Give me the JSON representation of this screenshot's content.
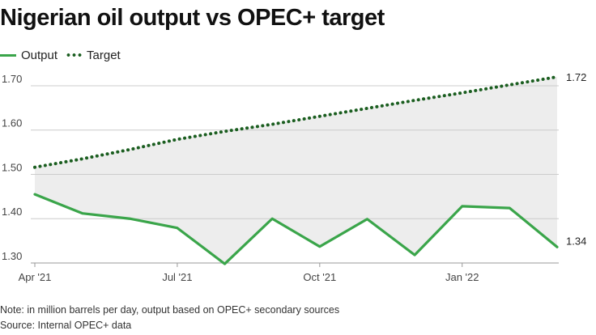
{
  "title": "Nigerian oil output vs OPEC+ target",
  "note": "Note: in million barrels per day, output based on OPEC+ secondary sources",
  "source": "Source: Internal OPEC+ data",
  "colors": {
    "output": "#3aa54a",
    "target": "#1b5e20",
    "fill": "#ededed",
    "grid": "#cccccc"
  },
  "chart_data": {
    "type": "line",
    "title": "Nigerian oil output vs OPEC+ target",
    "xlabel": "",
    "ylabel": "",
    "x": [
      "2021-04",
      "2021-05",
      "2021-06",
      "2021-07",
      "2021-08",
      "2021-09",
      "2021-10",
      "2021-11",
      "2021-12",
      "2022-01",
      "2022-02",
      "2022-03"
    ],
    "x_ticks": [
      {
        "label": "Apr '21",
        "x": "2021-04"
      },
      {
        "label": "Jul '21",
        "x": "2021-07"
      },
      {
        "label": "Oct '21",
        "x": "2021-10"
      },
      {
        "label": "Jan '22",
        "x": "2022-01"
      }
    ],
    "y_ticks": [
      {
        "label": "1.70",
        "value": 1.7
      },
      {
        "label": "1.60",
        "value": 1.6
      },
      {
        "label": "1.50",
        "value": 1.5
      },
      {
        "label": "1.40",
        "value": 1.4
      },
      {
        "label": "1.30",
        "value": 1.3
      }
    ],
    "ylim": [
      1.3,
      1.72
    ],
    "grid": true,
    "legend_position": "top-left",
    "shaded_between_series": true,
    "series": [
      {
        "name": "Output",
        "style": "solid",
        "color": "#3aa54a",
        "values": [
          1.455,
          1.412,
          1.4,
          1.379,
          1.298,
          1.4,
          1.337,
          1.399,
          1.318,
          1.428,
          1.424,
          1.336
        ],
        "end_label": "1.34"
      },
      {
        "name": "Target",
        "style": "dotted",
        "color": "#1b5e20",
        "values": [
          1.516,
          1.535,
          1.556,
          1.579,
          1.597,
          1.613,
          1.631,
          1.649,
          1.667,
          1.684,
          1.702,
          1.72
        ],
        "end_label": "1.72"
      }
    ]
  }
}
